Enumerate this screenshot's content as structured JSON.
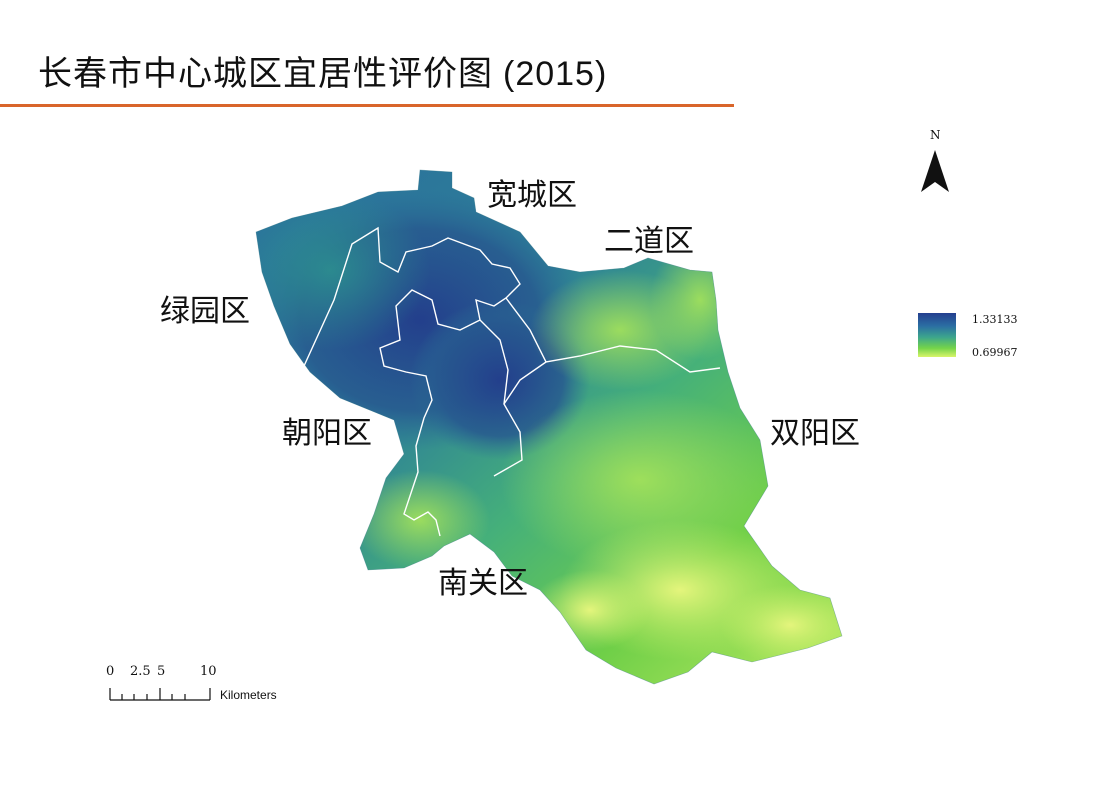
{
  "title": {
    "main": "长春市中心城区宜居性评价图",
    "year": "(2015)"
  },
  "colors": {
    "accent_rule": "#d9652a",
    "high": "#243f8f",
    "low": "#d9f56a"
  },
  "districts": [
    {
      "label": "宽城区"
    },
    {
      "label": "二道区"
    },
    {
      "label": "绿园区"
    },
    {
      "label": "朝阳区"
    },
    {
      "label": "双阳区"
    },
    {
      "label": "南关区"
    }
  ],
  "north_arrow": {
    "letter": "N"
  },
  "legend": {
    "max_label": "1.33133",
    "min_label": "0.69967"
  },
  "scale_bar": {
    "ticks": [
      "0",
      "2.5",
      "5",
      "10"
    ],
    "unit": "Kilometers"
  }
}
